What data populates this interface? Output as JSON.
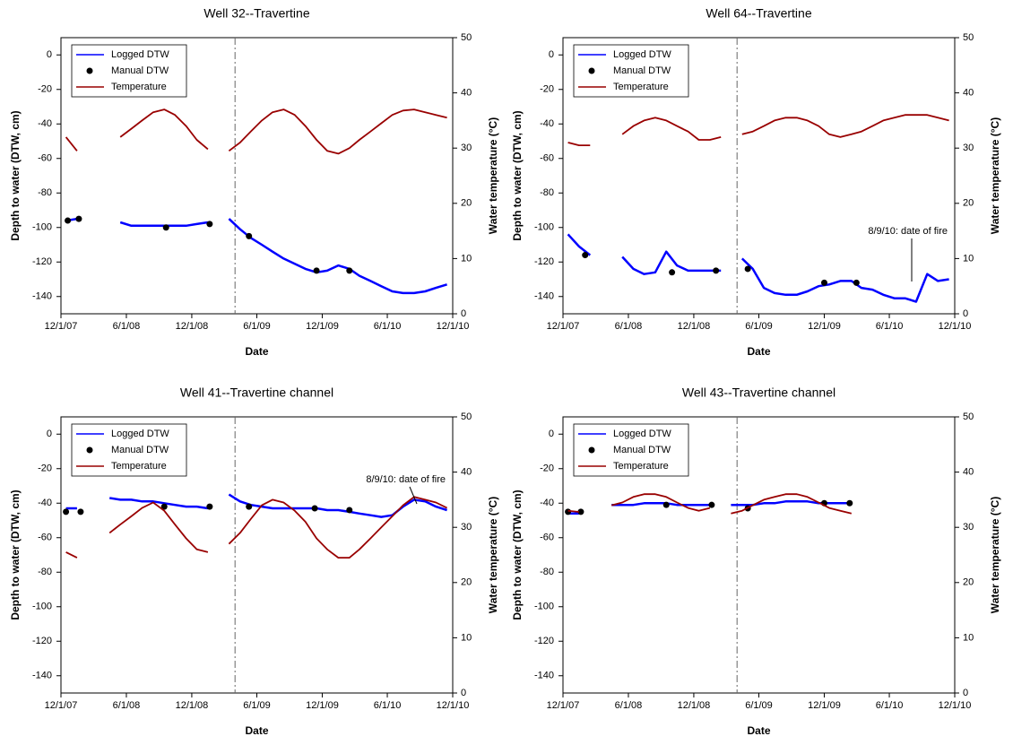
{
  "chart_data": [
    {
      "type": "line",
      "title": "Well 32--Travertine",
      "x_label": "Date",
      "y_label": "Depth to water (DTW, cm)",
      "y2_label": "Water temperature (°C)",
      "xlim": [
        "2007-12-01",
        "2010-12-01"
      ],
      "ylim": [
        -150,
        10
      ],
      "y2lim": [
        0,
        50
      ],
      "xticks": [
        {
          "value": "2007-12-01",
          "label": "12/1/07"
        },
        {
          "value": "2008-06-01",
          "label": "6/1/08"
        },
        {
          "value": "2008-12-01",
          "label": "12/1/08"
        },
        {
          "value": "2009-06-01",
          "label": "6/1/09"
        },
        {
          "value": "2009-12-01",
          "label": "12/1/09"
        },
        {
          "value": "2010-06-01",
          "label": "6/1/10"
        },
        {
          "value": "2010-12-01",
          "label": "12/1/10"
        }
      ],
      "yticks": [
        0,
        -20,
        -40,
        -60,
        -80,
        -100,
        -120,
        -140
      ],
      "y2ticks": [
        0,
        10,
        20,
        30,
        40,
        50
      ],
      "vline": "2009-04-01",
      "legend": "upper left",
      "x": [
        "2007-12-15",
        "2008-01-15",
        "2008-02-15",
        "2008-03-15",
        "2008-04-15",
        "2008-05-15",
        "2008-06-15",
        "2008-07-15",
        "2008-08-15",
        "2008-09-15",
        "2008-10-15",
        "2008-11-15",
        "2008-12-15",
        "2009-01-15",
        "2009-02-15",
        "2009-03-15",
        "2009-04-15",
        "2009-05-15",
        "2009-06-15",
        "2009-07-15",
        "2009-08-15",
        "2009-09-15",
        "2009-10-15",
        "2009-11-15",
        "2009-12-15",
        "2010-01-15",
        "2010-02-15",
        "2010-03-15",
        "2010-04-15",
        "2010-05-15",
        "2010-06-15",
        "2010-07-15",
        "2010-08-15",
        "2010-09-15",
        "2010-10-15",
        "2010-11-15"
      ],
      "series": [
        {
          "name": "Logged DTW",
          "color": "#0000ff",
          "values": [
            -96,
            -95,
            null,
            null,
            null,
            -97,
            -99,
            -99,
            -99,
            -99,
            -99,
            -99,
            -98,
            -97,
            null,
            -95,
            -101,
            -106,
            -110,
            -114,
            -118,
            -121,
            -124,
            -126,
            -125,
            -122,
            -124,
            -128,
            -131,
            -134,
            -137,
            -138,
            -138,
            -137,
            -135,
            -133
          ]
        },
        {
          "name": "Manual DTW",
          "color": "#000000",
          "type": "scatter",
          "x": [
            "2007-12-20",
            "2008-01-20",
            "2008-09-20",
            "2009-01-20",
            "2009-05-10",
            "2009-11-15",
            "2010-02-15"
          ],
          "values": [
            -96,
            -95,
            -100,
            -98,
            -105,
            -125,
            -125
          ]
        },
        {
          "name": "Temperature",
          "color": "#990000",
          "axis": "y2",
          "values": [
            32,
            29.5,
            null,
            null,
            null,
            32,
            33.5,
            35,
            36.5,
            37,
            36,
            34,
            31.5,
            29.8,
            null,
            29.5,
            31,
            33,
            35,
            36.5,
            37,
            36,
            34,
            31.5,
            29.5,
            29,
            30,
            31.5,
            33,
            34.5,
            36,
            36.8,
            37,
            36.5,
            36,
            35.5
          ]
        }
      ]
    },
    {
      "type": "line",
      "title": "Well 64--Travertine",
      "x_label": "Date",
      "y_label": "Depth to water (DTW, cm)",
      "y2_label": "Water temperature (°C)",
      "xlim": [
        "2007-12-01",
        "2010-12-01"
      ],
      "ylim": [
        -150,
        10
      ],
      "y2lim": [
        0,
        50
      ],
      "xticks": [
        {
          "value": "2007-12-01",
          "label": "12/1/07"
        },
        {
          "value": "2008-06-01",
          "label": "6/1/08"
        },
        {
          "value": "2008-12-01",
          "label": "12/1/08"
        },
        {
          "value": "2009-06-01",
          "label": "6/1/09"
        },
        {
          "value": "2009-12-01",
          "label": "12/1/09"
        },
        {
          "value": "2010-06-01",
          "label": "6/1/10"
        },
        {
          "value": "2010-12-01",
          "label": "12/1/10"
        }
      ],
      "yticks": [
        0,
        -20,
        -40,
        -60,
        -80,
        -100,
        -120,
        -140
      ],
      "y2ticks": [
        0,
        10,
        20,
        30,
        40,
        50
      ],
      "vline": "2009-04-01",
      "legend": "upper left",
      "annotation": "8/9/10: date of fire",
      "x": [
        "2007-12-15",
        "2008-01-15",
        "2008-02-15",
        "2008-03-15",
        "2008-04-15",
        "2008-05-15",
        "2008-06-15",
        "2008-07-15",
        "2008-08-15",
        "2008-09-15",
        "2008-10-15",
        "2008-11-15",
        "2008-12-15",
        "2009-01-15",
        "2009-02-15",
        "2009-03-15",
        "2009-04-15",
        "2009-05-15",
        "2009-06-15",
        "2009-07-15",
        "2009-08-15",
        "2009-09-15",
        "2009-10-15",
        "2009-11-15",
        "2009-12-15",
        "2010-01-15",
        "2010-02-15",
        "2010-03-15",
        "2010-04-15",
        "2010-05-15",
        "2010-06-15",
        "2010-07-15",
        "2010-08-15",
        "2010-09-15",
        "2010-10-15",
        "2010-11-15"
      ],
      "series": [
        {
          "name": "Logged DTW",
          "color": "#0000ff",
          "values": [
            -104,
            -111,
            -116,
            null,
            null,
            -117,
            -124,
            -127,
            -126,
            -114,
            -122,
            -125,
            -125,
            -125,
            -125,
            null,
            -118,
            -124,
            -135,
            -138,
            -139,
            -139,
            -137,
            -134,
            -133,
            -131,
            -131,
            -135,
            -136,
            -139,
            -141,
            -141,
            -143,
            -127,
            -131,
            -130
          ]
        },
        {
          "name": "Manual DTW",
          "color": "#000000",
          "type": "scatter",
          "x": [
            "2008-02-01",
            "2008-10-01",
            "2009-02-01",
            "2009-05-01",
            "2009-12-01",
            "2010-03-01"
          ],
          "values": [
            -116,
            -126,
            -125,
            -124,
            -132,
            -132
          ]
        },
        {
          "name": "Temperature",
          "color": "#990000",
          "axis": "y2",
          "values": [
            31,
            30.5,
            30.5,
            null,
            null,
            32.5,
            34,
            35,
            35.5,
            35,
            34,
            33,
            31.5,
            31.5,
            32,
            null,
            32.5,
            33,
            34,
            35,
            35.5,
            35.5,
            35,
            34,
            32.5,
            32,
            32.5,
            33,
            34,
            35,
            35.5,
            36,
            36,
            36,
            35.5,
            35
          ]
        }
      ]
    },
    {
      "type": "line",
      "title": "Well 41--Travertine channel",
      "x_label": "Date",
      "y_label": "Depth to water (DTW, cm)",
      "y2_label": "Water temperature (°C)",
      "xlim": [
        "2007-12-01",
        "2010-12-01"
      ],
      "ylim": [
        -150,
        10
      ],
      "y2lim": [
        0,
        50
      ],
      "xticks": [
        {
          "value": "2007-12-01",
          "label": "12/1/07"
        },
        {
          "value": "2008-06-01",
          "label": "6/1/08"
        },
        {
          "value": "2008-12-01",
          "label": "12/1/08"
        },
        {
          "value": "2009-06-01",
          "label": "6/1/09"
        },
        {
          "value": "2009-12-01",
          "label": "12/1/09"
        },
        {
          "value": "2010-06-01",
          "label": "6/1/10"
        },
        {
          "value": "2010-12-01",
          "label": "12/1/10"
        }
      ],
      "yticks": [
        0,
        -20,
        -40,
        -60,
        -80,
        -100,
        -120,
        -140
      ],
      "y2ticks": [
        0,
        10,
        20,
        30,
        40,
        50
      ],
      "vline": "2009-04-01",
      "legend": "upper left",
      "annotation": "8/9/10: date of fire",
      "x": [
        "2007-12-15",
        "2008-01-15",
        "2008-02-15",
        "2008-03-15",
        "2008-04-15",
        "2008-05-15",
        "2008-06-15",
        "2008-07-15",
        "2008-08-15",
        "2008-09-15",
        "2008-10-15",
        "2008-11-15",
        "2008-12-15",
        "2009-01-15",
        "2009-02-15",
        "2009-03-15",
        "2009-04-15",
        "2009-05-15",
        "2009-06-15",
        "2009-07-15",
        "2009-08-15",
        "2009-09-15",
        "2009-10-15",
        "2009-11-15",
        "2009-12-15",
        "2010-01-15",
        "2010-02-15",
        "2010-03-15",
        "2010-04-15",
        "2010-05-15",
        "2010-06-15",
        "2010-07-15",
        "2010-08-15",
        "2010-09-15",
        "2010-10-15",
        "2010-11-15"
      ],
      "series": [
        {
          "name": "Logged DTW",
          "color": "#0000ff",
          "values": [
            -43,
            -43,
            null,
            null,
            -37,
            -38,
            -38,
            -39,
            -39,
            -40,
            -41,
            -42,
            -42,
            -43,
            null,
            -35,
            -39,
            -41,
            -42,
            -43,
            -43,
            -43,
            -43,
            -43,
            -44,
            -44,
            -45,
            -46,
            -47,
            -48,
            -47,
            -42,
            -38,
            -39,
            -42,
            -44
          ]
        },
        {
          "name": "Manual DTW",
          "color": "#000000",
          "type": "scatter",
          "x": [
            "2007-12-15",
            "2008-01-25",
            "2008-09-15",
            "2009-01-20",
            "2009-05-10",
            "2009-11-10",
            "2010-02-15"
          ],
          "values": [
            -45,
            -45,
            -42,
            -42,
            -42,
            -43,
            -44
          ]
        },
        {
          "name": "Temperature",
          "color": "#990000",
          "axis": "y2",
          "values": [
            25.5,
            24.5,
            null,
            null,
            29,
            30.5,
            32,
            33.5,
            34.5,
            33,
            30.5,
            28,
            26,
            25.5,
            null,
            27,
            29,
            31.5,
            34,
            35,
            34.5,
            33,
            31,
            28,
            26,
            24.5,
            24.5,
            26,
            28,
            30,
            32,
            34,
            35.5,
            35,
            34.5,
            33.5
          ]
        }
      ]
    },
    {
      "type": "line",
      "title": "Well 43--Travertine channel",
      "x_label": "Date",
      "y_label": "Depth to water (DTW, cm)",
      "y2_label": "Water temperature (°C)",
      "xlim": [
        "2007-12-01",
        "2010-12-01"
      ],
      "ylim": [
        -150,
        10
      ],
      "y2lim": [
        0,
        50
      ],
      "xticks": [
        {
          "value": "2007-12-01",
          "label": "12/1/07"
        },
        {
          "value": "2008-06-01",
          "label": "6/1/08"
        },
        {
          "value": "2008-12-01",
          "label": "12/1/08"
        },
        {
          "value": "2009-06-01",
          "label": "6/1/09"
        },
        {
          "value": "2009-12-01",
          "label": "12/1/09"
        },
        {
          "value": "2010-06-01",
          "label": "6/1/10"
        },
        {
          "value": "2010-12-01",
          "label": "12/1/10"
        }
      ],
      "yticks": [
        0,
        -20,
        -40,
        -60,
        -80,
        -100,
        -120,
        -140
      ],
      "y2ticks": [
        0,
        10,
        20,
        30,
        40,
        50
      ],
      "vline": "2009-04-01",
      "legend": "upper left",
      "x": [
        "2007-12-15",
        "2008-01-15",
        "2008-02-15",
        "2008-03-15",
        "2008-04-15",
        "2008-05-15",
        "2008-06-15",
        "2008-07-15",
        "2008-08-15",
        "2008-09-15",
        "2008-10-15",
        "2008-11-15",
        "2008-12-15",
        "2009-01-15",
        "2009-02-15",
        "2009-03-15",
        "2009-04-15",
        "2009-05-15",
        "2009-06-15",
        "2009-07-15",
        "2009-08-15",
        "2009-09-15",
        "2009-10-15",
        "2009-11-15",
        "2009-12-15",
        "2010-01-15",
        "2010-02-15",
        "2010-03-15",
        "2010-04-15",
        "2010-05-15",
        "2010-06-15",
        "2010-07-15",
        "2010-08-15",
        "2010-09-15",
        "2010-10-15",
        "2010-11-15"
      ],
      "series": [
        {
          "name": "Logged DTW",
          "color": "#0000ff",
          "values": [
            -46,
            -46,
            null,
            null,
            -41,
            -41,
            -41,
            -40,
            -40,
            -40,
            -41,
            -41,
            -41,
            -41,
            null,
            -41,
            -41,
            -41,
            -40,
            -40,
            -39,
            -39,
            -39,
            -40,
            -40,
            -40,
            -40,
            null,
            null,
            null,
            null,
            null,
            null,
            null,
            null,
            null
          ]
        },
        {
          "name": "Manual DTW",
          "color": "#000000",
          "type": "scatter",
          "x": [
            "2007-12-15",
            "2008-01-20",
            "2008-09-15",
            "2009-01-20",
            "2009-05-01",
            "2009-12-01",
            "2010-02-10"
          ],
          "values": [
            -45,
            -45,
            -41,
            -41,
            -43,
            -40,
            -40
          ]
        },
        {
          "name": "Temperature",
          "color": "#990000",
          "axis": "y2",
          "values": [
            33,
            32.8,
            null,
            null,
            34,
            34.5,
            35.5,
            36,
            36,
            35.5,
            34.5,
            33.5,
            33,
            33.5,
            null,
            32.5,
            33,
            34,
            35,
            35.5,
            36,
            36,
            35.5,
            34.5,
            33.5,
            33,
            32.5,
            null,
            null,
            null,
            null,
            null,
            null,
            null,
            null,
            null
          ]
        }
      ]
    }
  ]
}
